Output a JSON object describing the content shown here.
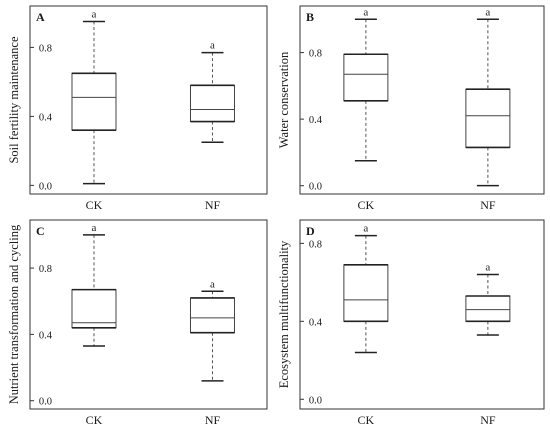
{
  "chart_data": [
    {
      "type": "box",
      "panel_label": "A",
      "ylabel": "Soil fertility maintenance",
      "categories": [
        "CK",
        "NF"
      ],
      "yticks": [
        "0.0",
        "0.4",
        "0.8"
      ],
      "ylim": [
        -0.05,
        1.04
      ],
      "boxes": [
        {
          "category": "CK",
          "min": 0.01,
          "q1": 0.32,
          "median": 0.51,
          "q3": 0.65,
          "max": 0.95,
          "letter": "a"
        },
        {
          "category": "NF",
          "min": 0.25,
          "q1": 0.37,
          "median": 0.44,
          "q3": 0.58,
          "max": 0.77,
          "letter": "a"
        }
      ]
    },
    {
      "type": "box",
      "panel_label": "B",
      "ylabel": "Water conservation",
      "categories": [
        "CK",
        "NF"
      ],
      "yticks": [
        "0.0",
        "0.4",
        "0.8"
      ],
      "ylim": [
        -0.05,
        1.08
      ],
      "boxes": [
        {
          "category": "CK",
          "min": 0.15,
          "q1": 0.51,
          "median": 0.67,
          "q3": 0.79,
          "max": 1.0,
          "letter": "a"
        },
        {
          "category": "NF",
          "min": 0.0,
          "q1": 0.23,
          "median": 0.42,
          "q3": 0.58,
          "max": 1.0,
          "letter": "a"
        }
      ]
    },
    {
      "type": "box",
      "panel_label": "C",
      "ylabel": "Nutrient transformation and cycling",
      "categories": [
        "CK",
        "NF"
      ],
      "yticks": [
        "0.0",
        "0.4",
        "0.8"
      ],
      "ylim": [
        -0.05,
        1.09
      ],
      "boxes": [
        {
          "category": "CK",
          "min": 0.33,
          "q1": 0.44,
          "median": 0.47,
          "q3": 0.67,
          "max": 1.0,
          "letter": "a"
        },
        {
          "category": "NF",
          "min": 0.12,
          "q1": 0.41,
          "median": 0.5,
          "q3": 0.62,
          "max": 0.66,
          "letter": "a"
        }
      ]
    },
    {
      "type": "box",
      "panel_label": "D",
      "ylabel": "Ecosystem multifunctionality",
      "categories": [
        "CK",
        "NF"
      ],
      "yticks": [
        "0.0",
        "0.4",
        "0.8"
      ],
      "ylim": [
        -0.05,
        0.92
      ],
      "boxes": [
        {
          "category": "CK",
          "min": 0.24,
          "q1": 0.4,
          "median": 0.51,
          "q3": 0.69,
          "max": 0.84,
          "letter": "a"
        },
        {
          "category": "NF",
          "min": 0.33,
          "q1": 0.4,
          "median": 0.46,
          "q3": 0.53,
          "max": 0.64,
          "letter": "a"
        }
      ]
    }
  ]
}
